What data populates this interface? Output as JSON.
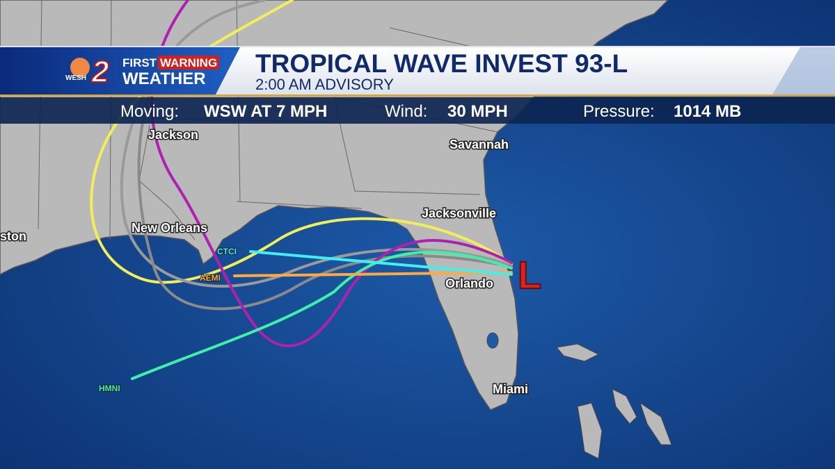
{
  "logo": {
    "station": "WESH",
    "channel": "2",
    "brand_top": "FIRST",
    "brand_warning": "WARNING",
    "brand_bottom": "WEATHER"
  },
  "header": {
    "title": "TROPICAL WAVE INVEST 93-L",
    "subtitle": "2:00 AM ADVISORY"
  },
  "stats": [
    {
      "label": "Moving:",
      "value": "WSW AT 7 MPH"
    },
    {
      "label": "Wind:",
      "value": "30 MPH"
    },
    {
      "label": "Pressure:",
      "value": "1014 MB"
    }
  ],
  "cities": [
    "Jackson",
    "Savannah",
    "Jacksonville",
    "New Orleans",
    "ston",
    "Orlando",
    "Miami"
  ],
  "models": [
    "CTCI",
    "AEMI",
    "HMNI"
  ],
  "storm_marker": "L"
}
